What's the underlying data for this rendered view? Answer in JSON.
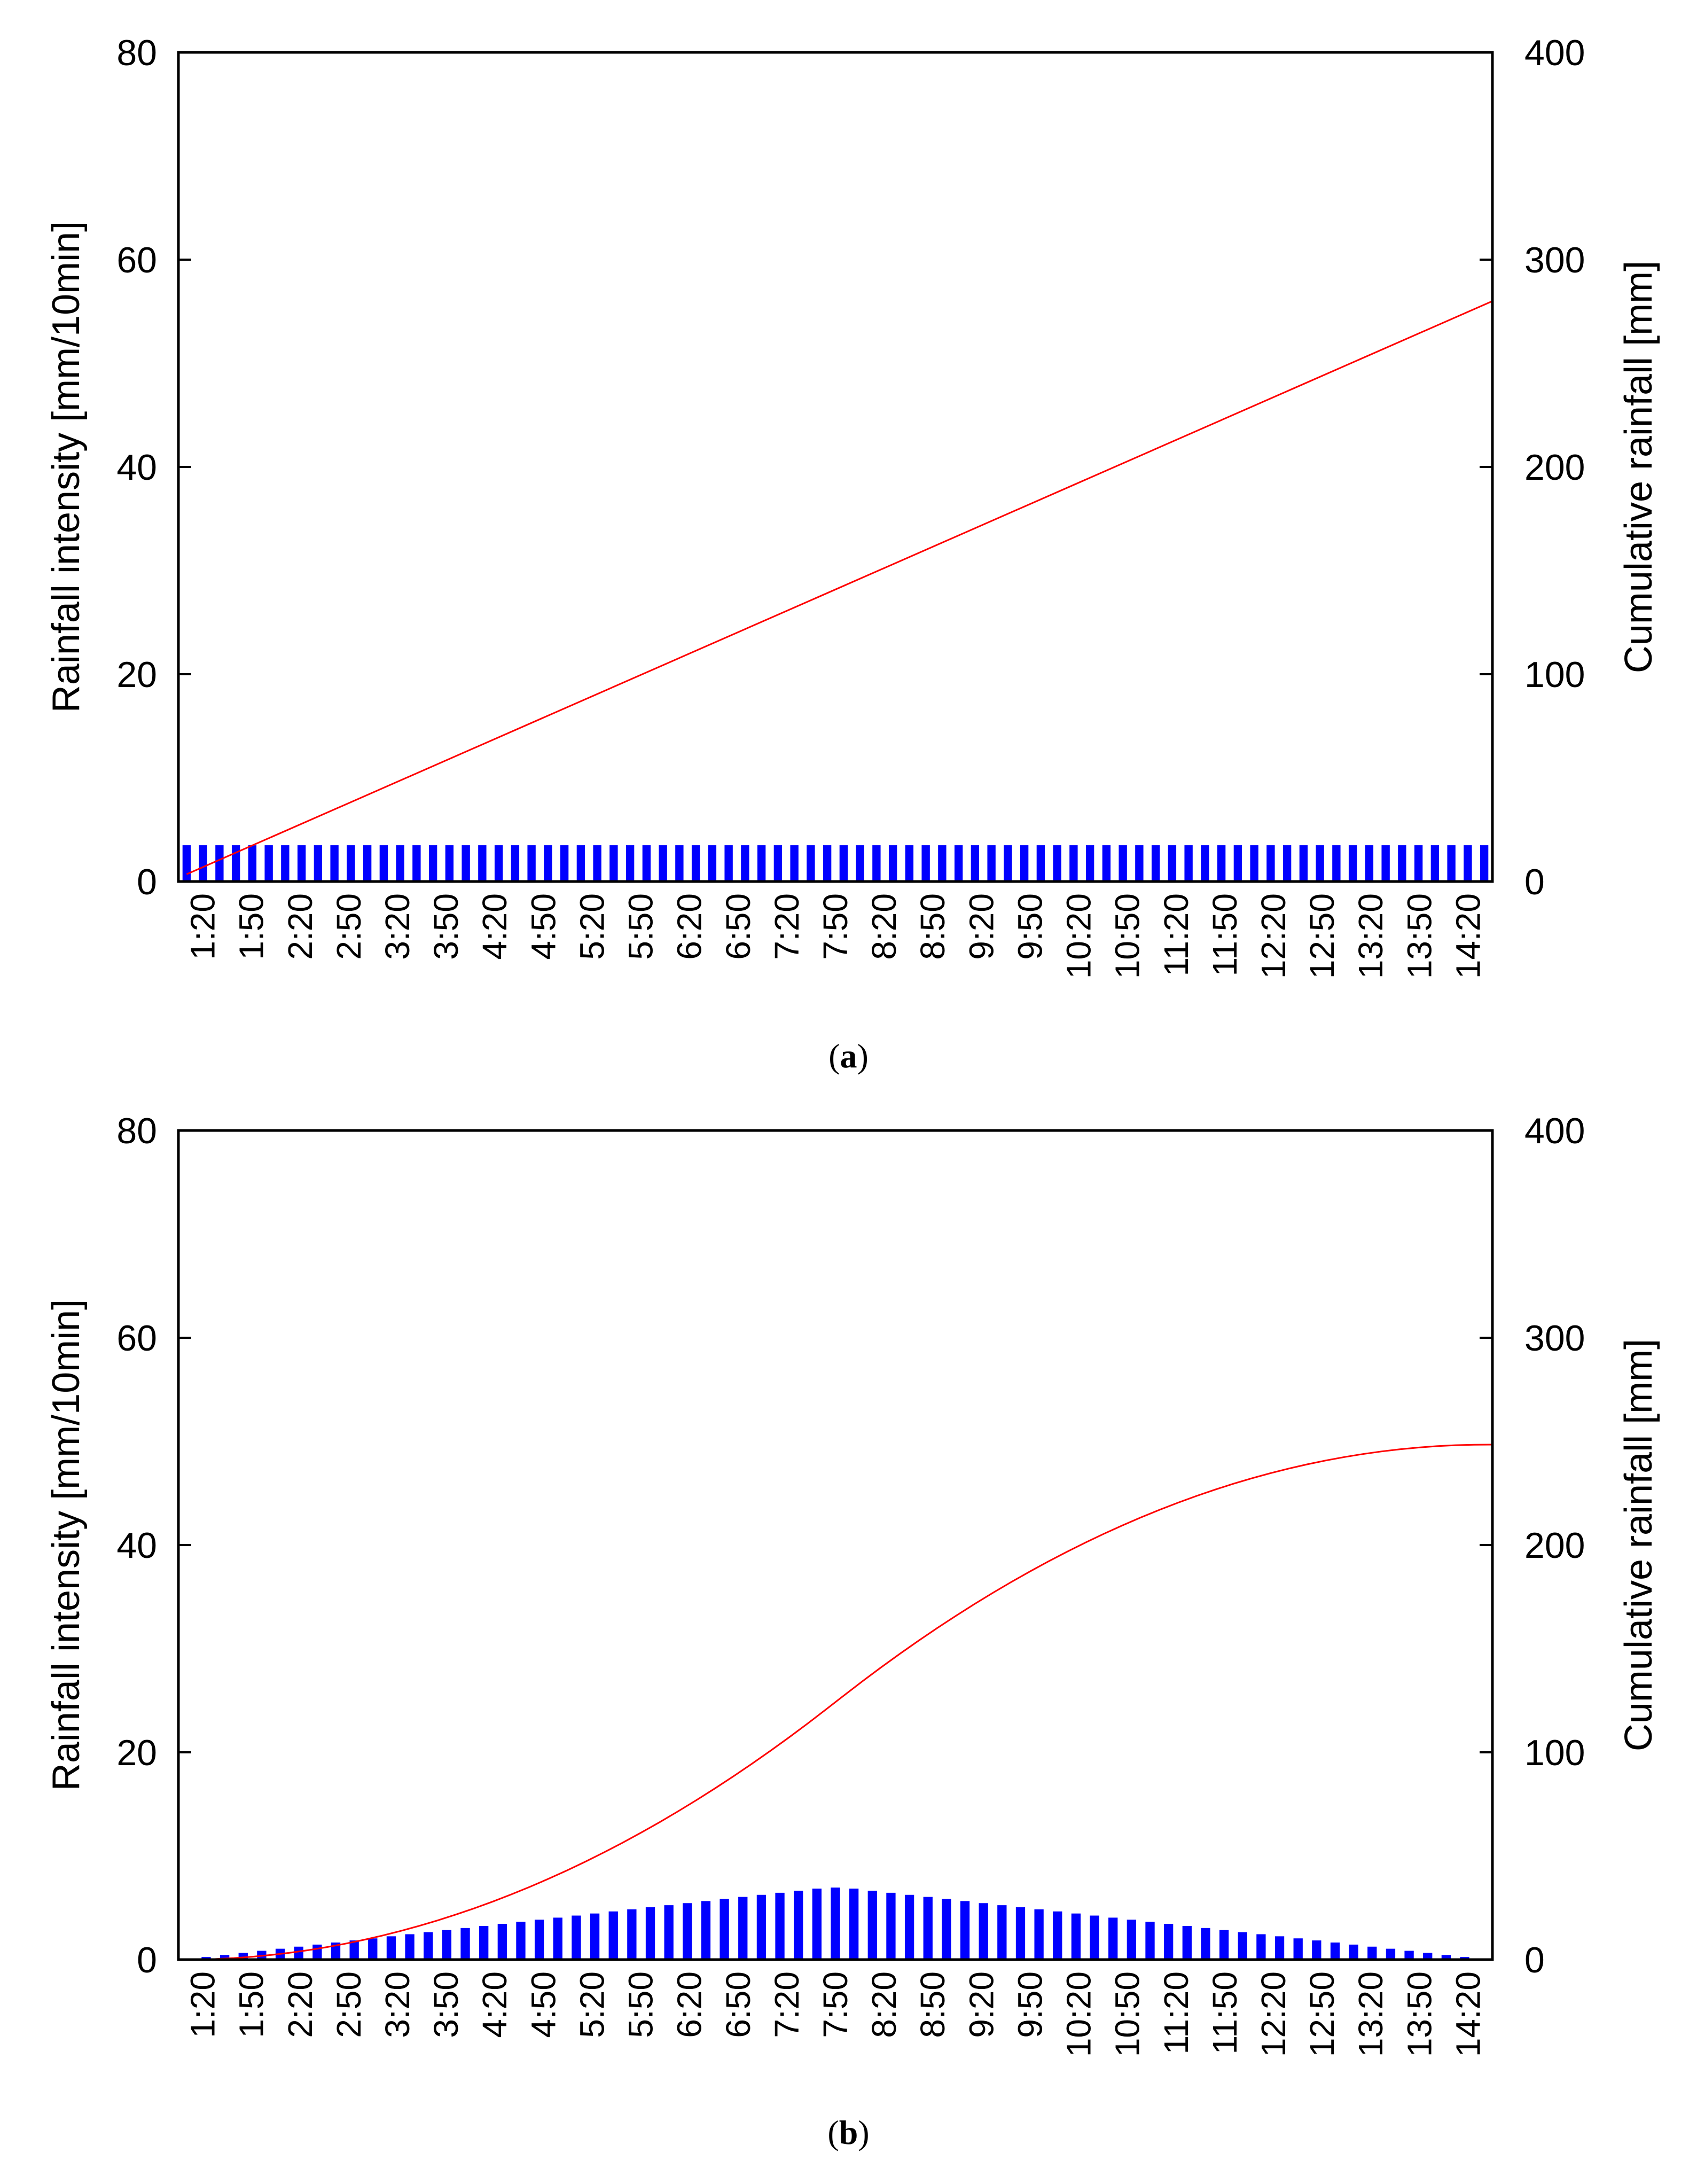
{
  "chart_data": [
    {
      "panel": "a",
      "type": "bar+line",
      "caption_letter": "a",
      "left_axis": {
        "label": "Rainfall intensity [mm/10min]",
        "lim": [
          0,
          80
        ],
        "ticks": [
          0,
          20,
          40,
          60,
          80
        ]
      },
      "right_axis": {
        "label": "Cumulative rainfall [mm]",
        "lim": [
          0,
          400
        ],
        "ticks": [
          0,
          100,
          200,
          300,
          400
        ]
      },
      "x_tick_labels": [
        "1:20",
        "1:50",
        "2:20",
        "2:50",
        "3:20",
        "3:50",
        "4:20",
        "4:50",
        "5:20",
        "5:50",
        "6:20",
        "6:50",
        "7:20",
        "7:50",
        "8:20",
        "8:50",
        "9:20",
        "9:50",
        "10:20",
        "10:50",
        "11:20",
        "11:50",
        "12:20",
        "12:50",
        "13:20",
        "13:50",
        "14:20"
      ],
      "series": [
        {
          "name": "Rainfall intensity",
          "kind": "bar",
          "axis": "left",
          "color": "#0000ff",
          "values": [
            3.5,
            3.5,
            3.5,
            3.5,
            3.5,
            3.5,
            3.5,
            3.5,
            3.5,
            3.5,
            3.5,
            3.5,
            3.5,
            3.5,
            3.5,
            3.5,
            3.5,
            3.5,
            3.5,
            3.5,
            3.5,
            3.5,
            3.5,
            3.5,
            3.5,
            3.5,
            3.5,
            3.5,
            3.5,
            3.5,
            3.5,
            3.5,
            3.5,
            3.5,
            3.5,
            3.5,
            3.5,
            3.5,
            3.5,
            3.5,
            3.5,
            3.5,
            3.5,
            3.5,
            3.5,
            3.5,
            3.5,
            3.5,
            3.5,
            3.5,
            3.5,
            3.5,
            3.5,
            3.5,
            3.5,
            3.5,
            3.5,
            3.5,
            3.5,
            3.5,
            3.5,
            3.5,
            3.5,
            3.5,
            3.5,
            3.5,
            3.5,
            3.5,
            3.5,
            3.5,
            3.5,
            3.5,
            3.5,
            3.5,
            3.5,
            3.5,
            3.5,
            3.5,
            3.5,
            3.5
          ]
        },
        {
          "name": "Cumulative rainfall",
          "kind": "line",
          "axis": "right",
          "color": "#ff0000",
          "shape": "linear",
          "start": 3.5,
          "end": 280
        }
      ]
    },
    {
      "panel": "b",
      "type": "bar+line",
      "caption_letter": "b",
      "left_axis": {
        "label": "Rainfall intensity [mm/10min]",
        "lim": [
          0,
          80
        ],
        "ticks": [
          0,
          20,
          40,
          60,
          80
        ]
      },
      "right_axis": {
        "label": "Cumulative rainfall [mm]",
        "lim": [
          0,
          400
        ],
        "ticks": [
          0,
          100,
          200,
          300,
          400
        ]
      },
      "x_tick_labels": [
        "1:20",
        "1:50",
        "2:20",
        "2:50",
        "3:20",
        "3:50",
        "4:20",
        "4:50",
        "5:20",
        "5:50",
        "6:20",
        "6:50",
        "7:20",
        "7:50",
        "8:20",
        "8:50",
        "9:20",
        "9:50",
        "10:20",
        "10:50",
        "11:20",
        "11:50",
        "12:20",
        "12:50",
        "13:20",
        "13:50",
        "14:20"
      ],
      "series": [
        {
          "name": "Rainfall intensity",
          "kind": "bar",
          "axis": "left",
          "color": "#0000ff",
          "values": [
            0.05,
            0.25,
            0.45,
            0.65,
            0.85,
            1.05,
            1.25,
            1.45,
            1.65,
            1.85,
            2.05,
            2.25,
            2.45,
            2.65,
            2.85,
            3.05,
            3.25,
            3.45,
            3.65,
            3.85,
            4.05,
            4.25,
            4.45,
            4.65,
            4.85,
            5.05,
            5.25,
            5.45,
            5.65,
            5.85,
            6.05,
            6.25,
            6.45,
            6.65,
            6.85,
            6.95,
            6.85,
            6.65,
            6.45,
            6.25,
            6.05,
            5.85,
            5.65,
            5.45,
            5.25,
            5.05,
            4.85,
            4.65,
            4.45,
            4.25,
            4.05,
            3.85,
            3.65,
            3.45,
            3.25,
            3.05,
            2.85,
            2.65,
            2.45,
            2.25,
            2.05,
            1.85,
            1.65,
            1.45,
            1.25,
            1.05,
            0.85,
            0.65,
            0.45,
            0.25,
            0.05
          ]
        },
        {
          "name": "Cumulative rainfall",
          "kind": "line",
          "axis": "right",
          "color": "#ff0000",
          "shape": "cumulative_sum_of_bars"
        }
      ]
    }
  ]
}
